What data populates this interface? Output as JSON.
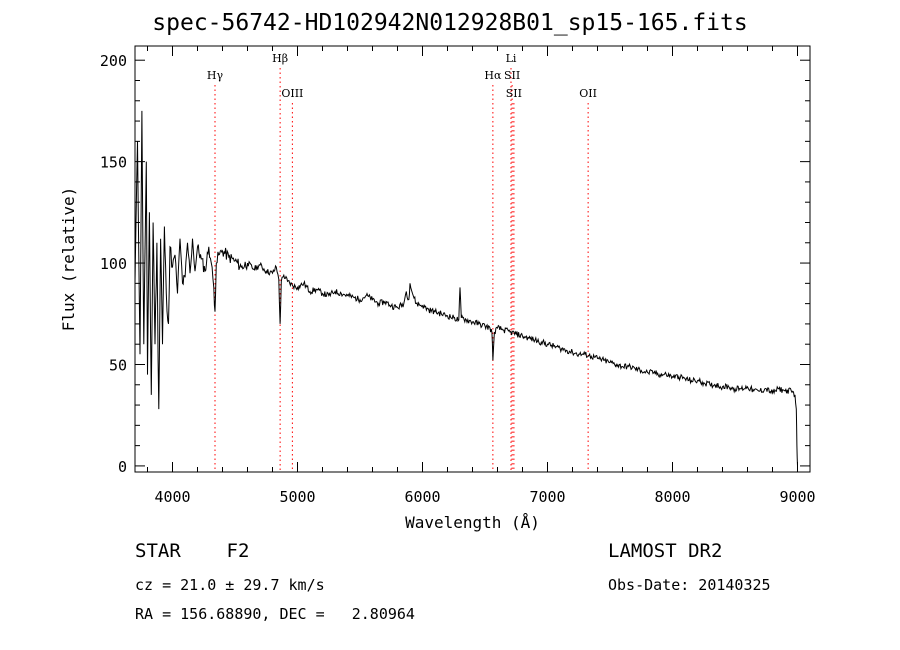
{
  "chart_data": {
    "type": "line",
    "title": "spec-56742-HD102942N012928B01_sp15-165.fits",
    "xlabel": "Wavelength (Å)",
    "ylabel": "Flux (relative)",
    "xlim": [
      3700,
      9100
    ],
    "ylim": [
      -3,
      207
    ],
    "xticks": [
      4000,
      5000,
      6000,
      7000,
      8000,
      9000
    ],
    "yticks": [
      0,
      50,
      100,
      150,
      200
    ],
    "grid": false,
    "line_color": "#000000",
    "marker_color": "#ff0000",
    "series": [
      {
        "x": [
          3700,
          3720,
          3740,
          3755,
          3770,
          3790,
          3800,
          3815,
          3830,
          3845,
          3860,
          3875,
          3890,
          3905,
          3920,
          3935,
          3950,
          3968,
          3980,
          4000,
          4020,
          4040,
          4060,
          4080,
          4101,
          4120,
          4140,
          4160,
          4180,
          4200,
          4230,
          4260,
          4290,
          4310,
          4330,
          4340,
          4350,
          4370,
          4400,
          4450,
          4500,
          4550,
          4600,
          4650,
          4700,
          4750,
          4800,
          4830,
          4850,
          4861,
          4870,
          4890,
          4920,
          4960,
          5000,
          5050,
          5100,
          5150,
          5200,
          5250,
          5300,
          5350,
          5400,
          5450,
          5500,
          5550,
          5600,
          5650,
          5700,
          5750,
          5800,
          5850,
          5870,
          5890,
          5900,
          5920,
          5950,
          6000,
          6050,
          6100,
          6150,
          6200,
          6250,
          6290,
          6300,
          6310,
          6350,
          6400,
          6450,
          6500,
          6540,
          6555,
          6563,
          6575,
          6600,
          6650,
          6700,
          6750,
          6800,
          6850,
          6900,
          6950,
          7000,
          7050,
          7100,
          7150,
          7200,
          7250,
          7300,
          7350,
          7400,
          7450,
          7500,
          7550,
          7600,
          7650,
          7700,
          7750,
          7800,
          7850,
          7900,
          7950,
          8000,
          8050,
          8100,
          8150,
          8200,
          8250,
          8300,
          8350,
          8400,
          8450,
          8500,
          8550,
          8600,
          8650,
          8700,
          8750,
          8800,
          8850,
          8900,
          8950,
          8980,
          8990,
          8995,
          9000
        ],
        "y": [
          90,
          160,
          55,
          175,
          60,
          150,
          45,
          125,
          35,
          120,
          60,
          110,
          28,
          112,
          60,
          118,
          85,
          70,
          108,
          98,
          104,
          85,
          112,
          90,
          93,
          110,
          95,
          112,
          96,
          108,
          102,
          96,
          108,
          100,
          88,
          76,
          100,
          104,
          106,
          103,
          101,
          98,
          100,
          97,
          99,
          96,
          95,
          98,
          92,
          70,
          91,
          94,
          91,
          89,
          88,
          90,
          86,
          87,
          85,
          84,
          86,
          85,
          84,
          83,
          82,
          84,
          82,
          80,
          81,
          79,
          78,
          80,
          86,
          82,
          90,
          85,
          80,
          79,
          77,
          76,
          75,
          74,
          73,
          72,
          88,
          73,
          72,
          71,
          70,
          69,
          68,
          66,
          52,
          66,
          68,
          67,
          66,
          65,
          64,
          63,
          62,
          61,
          60,
          59,
          58,
          57,
          56,
          55,
          55,
          54,
          53,
          52,
          51,
          50,
          49,
          49,
          48,
          47,
          46,
          46,
          45,
          45,
          44,
          44,
          43,
          42,
          42,
          41,
          40,
          40,
          39,
          39,
          38,
          38,
          39,
          37,
          37,
          38,
          36,
          38,
          37,
          37,
          35,
          28,
          10,
          0
        ]
      }
    ],
    "lines": [
      {
        "label": "Hγ",
        "x": 4340,
        "label_row": 2,
        "color": "#ff0000"
      },
      {
        "label": "Hβ",
        "x": 4861,
        "label_row": 1,
        "color": "#ff0000"
      },
      {
        "label": "OIII",
        "x": 4959,
        "label_row": 3,
        "color": "#ff0000"
      },
      {
        "label": "Li",
        "x": 6708,
        "label_row": 1,
        "color": "#ff0000"
      },
      {
        "label": "Hα",
        "x": 6563,
        "label_row": 2,
        "color": "#ff0000"
      },
      {
        "label": "SII",
        "x": 6717,
        "label_row": 2,
        "color": "#ff0000"
      },
      {
        "label": "SII",
        "x": 6731,
        "label_row": 3,
        "color": "#ff0000"
      },
      {
        "label": "OII",
        "x": 7325,
        "label_row": 3,
        "color": "#ff0000"
      }
    ]
  },
  "info": {
    "class_line": "STAR    F2",
    "survey": "LAMOST DR2",
    "cz": "cz = 21.0 ± 29.7 km/s",
    "obs_date": "Obs-Date: 20140325",
    "radec": "RA = 156.68890, DEC =   2.80964"
  }
}
